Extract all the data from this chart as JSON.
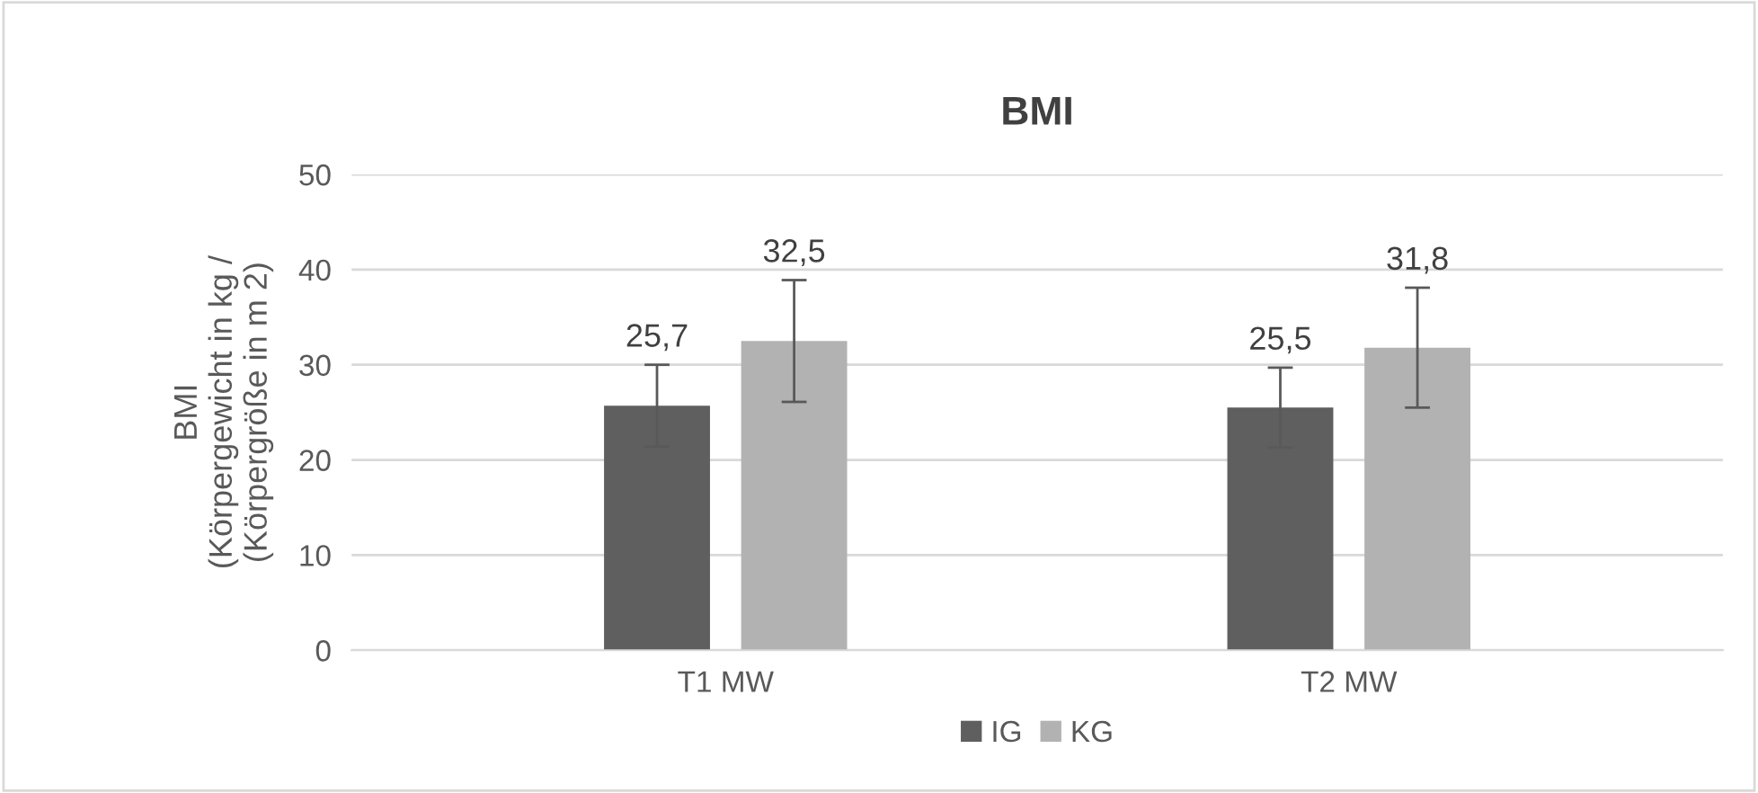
{
  "chart_data": {
    "type": "bar",
    "title": "BMI",
    "ylabel": "BMI\n(Körpergewicht in kg /\n(Körpergröße in m 2)",
    "categories": [
      "T1 MW",
      "T2 MW"
    ],
    "series": [
      {
        "name": "IG",
        "color": "#5f5f5f",
        "values": [
          25.7,
          25.5
        ],
        "errors": [
          4.3,
          4.2
        ],
        "value_labels": [
          "25,7",
          "25,5"
        ]
      },
      {
        "name": "KG",
        "color": "#b2b2b2",
        "values": [
          32.5,
          31.8
        ],
        "errors": [
          6.4,
          6.3
        ],
        "value_labels": [
          "32,5",
          "31,8"
        ]
      }
    ],
    "ylim": [
      0,
      50
    ],
    "yticks": [
      0,
      10,
      20,
      30,
      40,
      50
    ],
    "grid": "y",
    "legend": "bottom"
  }
}
